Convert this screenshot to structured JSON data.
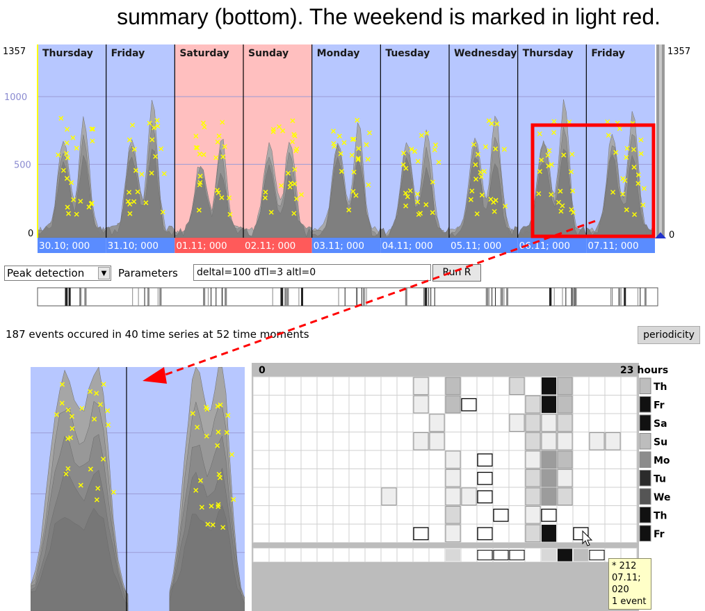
{
  "caption": "summary (bottom). The weekend is marked in light red.",
  "timeline": {
    "y_max_label": "1357",
    "y_max_label_right": "1357",
    "y_ticks": [
      "1000",
      "500",
      "0"
    ],
    "y_zero_right": "0",
    "days": [
      {
        "name": "Thursday",
        "date": "30.10; 000",
        "weekend": false
      },
      {
        "name": "Friday",
        "date": "31.10; 000",
        "weekend": false
      },
      {
        "name": "Saturday",
        "date": "01.11; 000",
        "weekend": true
      },
      {
        "name": "Sunday",
        "date": "02.11; 000",
        "weekend": true
      },
      {
        "name": "Monday",
        "date": "03.11; 000",
        "weekend": false
      },
      {
        "name": "Tuesday",
        "date": "04.11; 000",
        "weekend": false
      },
      {
        "name": "Wednesday",
        "date": "05.11; 000",
        "weekend": false
      },
      {
        "name": "Thursday",
        "date": "06.11; 000",
        "weekend": false
      },
      {
        "name": "Friday",
        "date": "07.11; 000",
        "weekend": false
      }
    ],
    "colors": {
      "weekday_bg": "#b7c7ff",
      "weekend_bg": "#ffbfbf",
      "area": "#8c8c8c",
      "marker": "#ffff00",
      "date_bar": "#5a8cff",
      "date_bar_weekend": "#ff5a5a",
      "highlight": "#ff0000"
    }
  },
  "controls": {
    "method_select": "Peak detection",
    "parameters_label": "Parameters",
    "parameters_value": "deltal=100 dTl=3 altl=0",
    "run_button": "Run R"
  },
  "events_summary": "187 events occured in 40 time series at 52 time moments",
  "periodicity_button": "periodicity",
  "grid": {
    "start_label": "0",
    "end_label": "23 hours",
    "rows": [
      {
        "label": "Th",
        "cells": [
          0,
          0,
          0,
          0,
          0,
          0,
          0,
          0,
          0,
          0,
          1,
          0,
          3,
          0,
          0,
          0,
          2,
          0,
          6,
          3,
          0,
          0,
          0,
          0
        ],
        "summary": 6
      },
      {
        "label": "Fr",
        "cells": [
          0,
          0,
          0,
          0,
          0,
          0,
          0,
          0,
          0,
          0,
          1,
          0,
          3,
          5,
          0,
          0,
          0,
          2,
          6,
          3,
          0,
          0,
          0,
          0
        ],
        "summary": 6
      },
      {
        "label": "Sa",
        "cells": [
          0,
          0,
          0,
          0,
          0,
          0,
          0,
          0,
          0,
          0,
          0,
          1,
          0,
          0,
          0,
          0,
          1,
          2,
          1,
          2,
          0,
          0,
          0,
          0
        ],
        "summary": 2
      },
      {
        "label": "Su",
        "cells": [
          0,
          0,
          0,
          0,
          0,
          0,
          0,
          0,
          0,
          0,
          1,
          1,
          0,
          0,
          0,
          0,
          0,
          2,
          1,
          1,
          0,
          1,
          1,
          0
        ],
        "summary": 3
      },
      {
        "label": "Mo",
        "cells": [
          0,
          0,
          0,
          0,
          0,
          0,
          0,
          0,
          0,
          0,
          0,
          0,
          1,
          0,
          5,
          0,
          0,
          1,
          4,
          3,
          0,
          0,
          0,
          0
        ],
        "summary": 5
      },
      {
        "label": "Tu",
        "cells": [
          0,
          0,
          0,
          0,
          0,
          0,
          0,
          0,
          0,
          0,
          0,
          0,
          1,
          0,
          5,
          0,
          0,
          2,
          4,
          1,
          0,
          0,
          0,
          0
        ],
        "summary": 5
      },
      {
        "label": "We",
        "cells": [
          0,
          0,
          0,
          0,
          0,
          0,
          0,
          0,
          1,
          0,
          0,
          0,
          1,
          1,
          5,
          0,
          0,
          2,
          4,
          2,
          0,
          0,
          0,
          0
        ],
        "summary": 6
      },
      {
        "label": "Th",
        "cells": [
          0,
          0,
          0,
          0,
          0,
          0,
          0,
          0,
          0,
          0,
          0,
          0,
          2,
          0,
          0,
          5,
          0,
          1,
          5,
          0,
          0,
          0,
          0,
          0
        ],
        "summary": 6
      },
      {
        "label": "Fr",
        "cells": [
          0,
          0,
          0,
          0,
          0,
          0,
          0,
          0,
          0,
          0,
          5,
          0,
          1,
          0,
          5,
          0,
          0,
          2,
          6,
          0,
          5,
          0,
          0,
          0
        ],
        "summary": 6
      }
    ],
    "summary_row": [
      0,
      0,
      0,
      0,
      0,
      0,
      0,
      0,
      0,
      0,
      0,
      0,
      2,
      0,
      5,
      5,
      5,
      0,
      2,
      6,
      3,
      5,
      0,
      0
    ]
  },
  "tooltip": {
    "line1": "* 212",
    "line2": "07.11; 020",
    "line3": "1 event"
  }
}
